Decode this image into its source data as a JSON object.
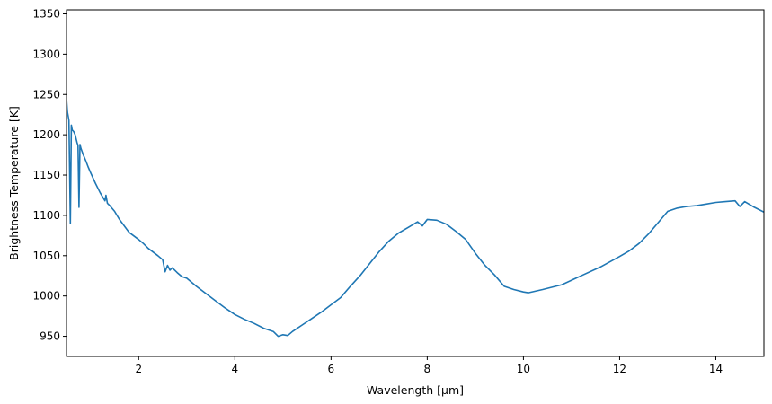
{
  "chart_data": {
    "type": "line",
    "title": "",
    "xlabel": "Wavelength [μm]",
    "ylabel": "Brightness Temperature [K]",
    "xlim": [
      0.5,
      15.0
    ],
    "ylim": [
      925,
      1355
    ],
    "x_ticks": [
      2,
      4,
      6,
      8,
      10,
      12,
      14
    ],
    "y_ticks": [
      950,
      1000,
      1050,
      1100,
      1150,
      1200,
      1250,
      1300,
      1350
    ],
    "grid": false,
    "legend": "none",
    "color": "#1f77b4",
    "series": [
      {
        "x": [
          0.5,
          0.52,
          0.55,
          0.58,
          0.6,
          0.62,
          0.65,
          0.68,
          0.7,
          0.72,
          0.74,
          0.76,
          0.78,
          0.8,
          0.82,
          0.85,
          0.9,
          0.95,
          1.0,
          1.1,
          1.2,
          1.3,
          1.32,
          1.35,
          1.4,
          1.5,
          1.6,
          1.8,
          2.0,
          2.1,
          2.2,
          2.4,
          2.5,
          2.55,
          2.6,
          2.65,
          2.7,
          2.8,
          2.9,
          3.0,
          3.2,
          3.4,
          3.6,
          3.8,
          4.0,
          4.2,
          4.4,
          4.6,
          4.8,
          4.9,
          5.0,
          5.1,
          5.2,
          5.4,
          5.6,
          5.8,
          6.0,
          6.2,
          6.4,
          6.6,
          6.8,
          7.0,
          7.2,
          7.4,
          7.6,
          7.8,
          7.9,
          8.0,
          8.2,
          8.4,
          8.6,
          8.8,
          9.0,
          9.2,
          9.4,
          9.6,
          9.8,
          10.0,
          10.1,
          10.4,
          10.8,
          11.2,
          11.6,
          12.0,
          12.2,
          12.4,
          12.6,
          12.8,
          13.0,
          13.2,
          13.4,
          13.6,
          13.8,
          14.0,
          14.2,
          14.4,
          14.5,
          14.6,
          14.8,
          15.0
        ],
        "y": [
          1245,
          1228,
          1218,
          1090,
          1212,
          1206,
          1204,
          1200,
          1195,
          1190,
          1187,
          1110,
          1188,
          1183,
          1180,
          1175,
          1168,
          1160,
          1153,
          1140,
          1128,
          1118,
          1125,
          1115,
          1112,
          1105,
          1095,
          1079,
          1070,
          1065,
          1059,
          1050,
          1045,
          1030,
          1038,
          1032,
          1035,
          1029,
          1024,
          1022,
          1012,
          1003,
          994,
          985,
          977,
          971,
          966,
          960,
          956,
          950,
          952,
          951,
          956,
          964,
          972,
          980,
          989,
          998,
          1012,
          1025,
          1040,
          1055,
          1068,
          1078,
          1085,
          1092,
          1087,
          1095,
          1094,
          1089,
          1080,
          1070,
          1053,
          1038,
          1026,
          1012,
          1008,
          1005,
          1004,
          1008,
          1014,
          1025,
          1036,
          1049,
          1056,
          1065,
          1077,
          1091,
          1105,
          1109,
          1111,
          1112,
          1114,
          1116,
          1117,
          1118,
          1111,
          1117,
          1110,
          1104
        ]
      }
    ]
  }
}
